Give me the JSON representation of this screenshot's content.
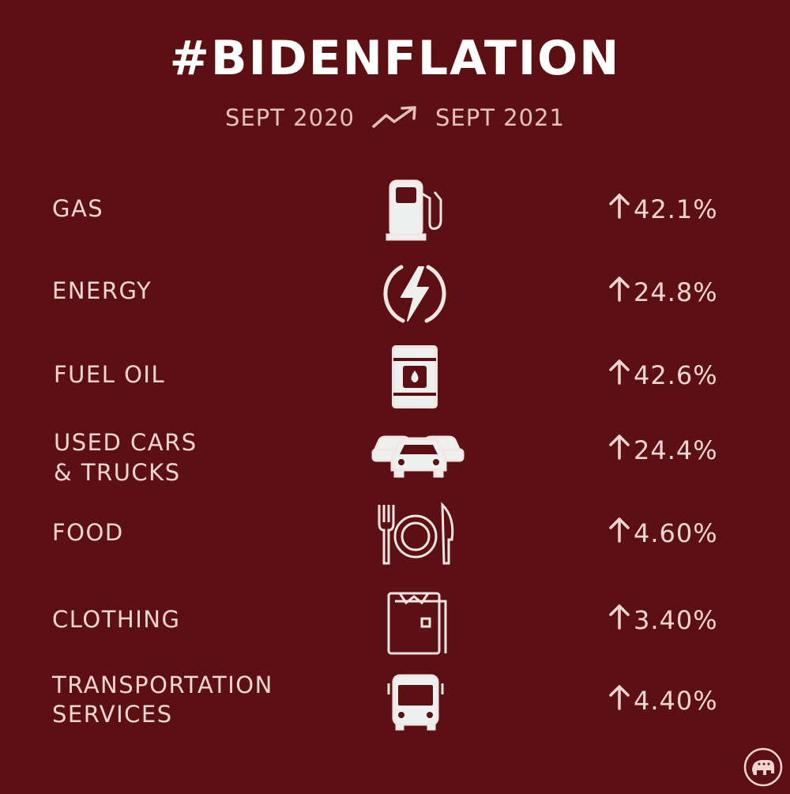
{
  "title": "#BIDENFLATION",
  "date_range": {
    "from": "SEPT 2020",
    "to": "SEPT 2021",
    "trend_icon": "trending-up-icon"
  },
  "items": [
    {
      "label_line1": "GAS",
      "label_line2": "",
      "icon": "gas-pump-icon",
      "value": "42.1%"
    },
    {
      "label_line1": "ENERGY",
      "label_line2": "",
      "icon": "lightning-icon",
      "value": "24.8%"
    },
    {
      "label_line1": "FUEL OIL",
      "label_line2": "",
      "icon": "oil-barrel-icon",
      "value": "42.6%"
    },
    {
      "label_line1": "USED CARS",
      "label_line2": "& TRUCKS",
      "icon": "cars-icon",
      "value": "24.4%"
    },
    {
      "label_line1": "FOOD",
      "label_line2": "",
      "icon": "fork-plate-knife-icon",
      "value": "4.60%"
    },
    {
      "label_line1": "CLOTHING",
      "label_line2": "",
      "icon": "shirt-icon",
      "value": "3.40%"
    },
    {
      "label_line1": "TRANSPORTATION",
      "label_line2": "SERVICES",
      "icon": "bus-icon",
      "value": "4.40%"
    }
  ],
  "colors": {
    "background": "#5d1014",
    "text": "#efd6d2",
    "title": "#ffffff"
  },
  "logo": "republican-elephant-seal"
}
